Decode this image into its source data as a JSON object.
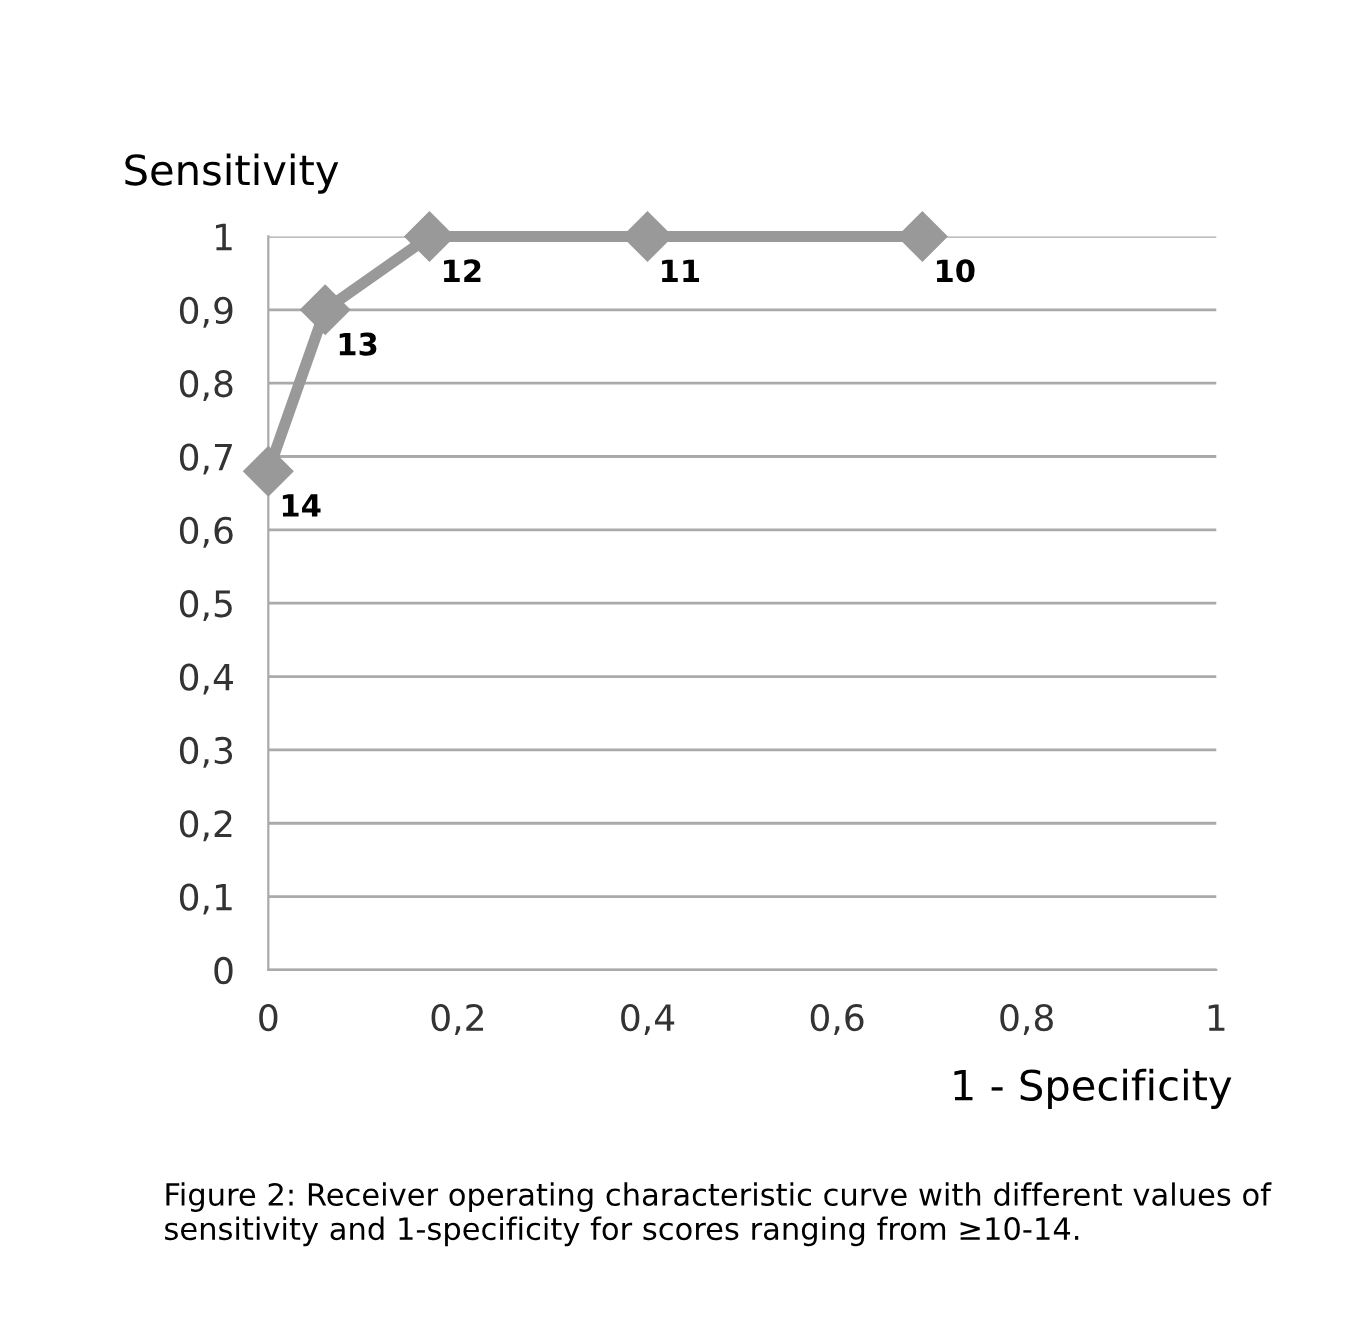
{
  "chart_data": {
    "type": "line",
    "ylabel": "Sensitivity",
    "xlabel": "1 - Specificity",
    "x": [
      0,
      0.06,
      0.17,
      0.4,
      0.69
    ],
    "series": [
      {
        "color": "#999999",
        "values": [
          0.68,
          0.9,
          1,
          1,
          1
        ]
      }
    ],
    "marker": "diamond",
    "line_style": "solid",
    "grid": "y",
    "xlim": [
      0,
      1
    ],
    "ylim": [
      0,
      1
    ],
    "xticks": [
      {
        "value": 0,
        "label": "0"
      },
      {
        "value": 0.2,
        "label": "0,2"
      },
      {
        "value": 0.4,
        "label": "0,4"
      },
      {
        "value": 0.6,
        "label": "0,6"
      },
      {
        "value": 0.8,
        "label": "0,8"
      },
      {
        "value": 1,
        "label": "1"
      }
    ],
    "yticks": [
      {
        "value": 0,
        "label": "0"
      },
      {
        "value": 0.1,
        "label": "0,1"
      },
      {
        "value": 0.2,
        "label": "0,2"
      },
      {
        "value": 0.3,
        "label": "0,3"
      },
      {
        "value": 0.4,
        "label": "0,4"
      },
      {
        "value": 0.5,
        "label": "0,5"
      },
      {
        "value": 0.6,
        "label": "0,6"
      },
      {
        "value": 0.7,
        "label": "0,7"
      },
      {
        "value": 0.8,
        "label": "0,8"
      },
      {
        "value": 0.9,
        "label": "0,9"
      },
      {
        "value": 1,
        "label": "1"
      }
    ],
    "annotations": [
      {
        "text": "14",
        "x": 0,
        "y": 0.68
      },
      {
        "text": "13",
        "x": 0.06,
        "y": 0.9
      },
      {
        "text": "12",
        "x": 0.17,
        "y": 1
      },
      {
        "text": "11",
        "x": 0.4,
        "y": 1
      },
      {
        "text": "10",
        "x": 0.69,
        "y": 1
      },
      "Figure 2: Receiver operating characteristic curve with different values of sensitivity and 1-specificity for scores ranging from ≥10-14."
    ]
  }
}
